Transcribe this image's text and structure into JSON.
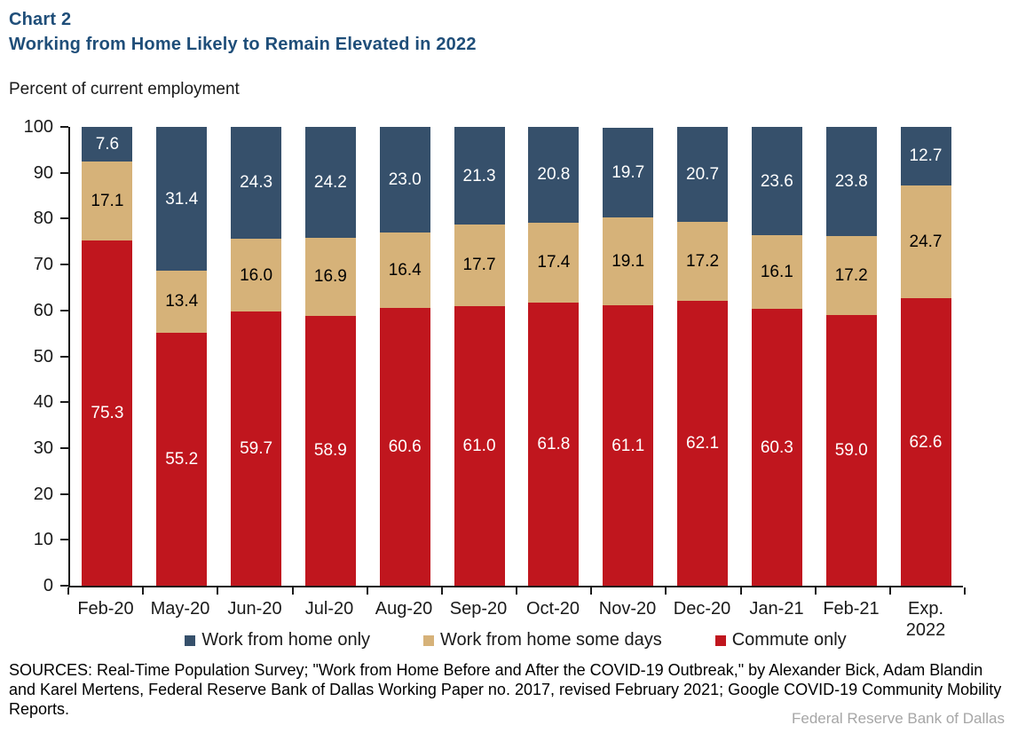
{
  "header": {
    "chart_label": "Chart 2",
    "title": "Working from Home Likely to Remain Elevated in 2022",
    "subtitle": "Percent of current employment"
  },
  "chart_data": {
    "type": "bar",
    "stacked": true,
    "title": "Working from Home Likely to Remain Elevated in 2022",
    "ylabel": "Percent of current employment",
    "xlabel": "",
    "ylim": [
      0,
      100
    ],
    "ytick_step": 10,
    "grid": false,
    "legend_position": "bottom",
    "categories": [
      "Feb-20",
      "May-20",
      "Jun-20",
      "Jul-20",
      "Aug-20",
      "Sep-20",
      "Oct-20",
      "Nov-20",
      "Dec-20",
      "Jan-21",
      "Feb-21",
      "Exp.\n2022"
    ],
    "series": [
      {
        "name": "Work from home only",
        "color": "#36506B",
        "label_color": "#FFFFFF",
        "values": [
          7.6,
          31.4,
          24.3,
          24.2,
          23.0,
          21.3,
          20.8,
          19.7,
          20.7,
          23.6,
          23.8,
          12.7
        ]
      },
      {
        "name": "Work from home some days",
        "color": "#D6B279",
        "label_color": "#000000",
        "values": [
          17.1,
          13.4,
          16.0,
          16.9,
          16.4,
          17.7,
          17.4,
          19.1,
          17.2,
          16.1,
          17.2,
          24.7
        ]
      },
      {
        "name": "Commute only",
        "color": "#C0161E",
        "label_color": "#FFFFFF",
        "values": [
          75.3,
          55.2,
          59.7,
          58.9,
          60.6,
          61.0,
          61.8,
          61.1,
          62.1,
          60.3,
          59.0,
          62.6
        ]
      }
    ]
  },
  "colors": {
    "title": "#1F4E79",
    "axis": "#1a1a1a",
    "wfh_only": "#36506B",
    "wfh_some_days": "#D6B279",
    "commute_only": "#C0161E",
    "credit_gray": "#A6A6A6"
  },
  "footer": {
    "sources": "SOURCES: Real-Time Population Survey; \"Work from Home Before and After the COVID-19 Outbreak,\" by Alexander Bick, Adam Blandin and Karel Mertens, Federal Reserve Bank of Dallas Working Paper no. 2017, revised February 2021; Google COVID-19 Community Mobility Reports.",
    "credit": "Federal Reserve Bank of Dallas"
  }
}
